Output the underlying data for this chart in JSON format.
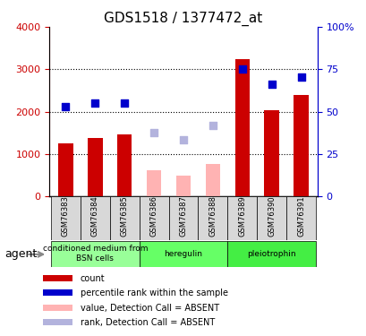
{
  "title": "GDS1518 / 1377472_at",
  "samples": [
    "GSM76383",
    "GSM76384",
    "GSM76385",
    "GSM76386",
    "GSM76387",
    "GSM76388",
    "GSM76389",
    "GSM76390",
    "GSM76391"
  ],
  "count_values": [
    1250,
    1380,
    1460,
    null,
    null,
    null,
    3230,
    2030,
    2400
  ],
  "count_absent": [
    null,
    null,
    null,
    630,
    490,
    760,
    null,
    null,
    null
  ],
  "rank_values": [
    2130,
    2200,
    2210,
    null,
    null,
    null,
    3010,
    2650,
    2820
  ],
  "rank_absent": [
    null,
    null,
    null,
    1500,
    1330,
    1680,
    null,
    null,
    null
  ],
  "ylim": [
    0,
    4000
  ],
  "yticks_left": [
    0,
    1000,
    2000,
    3000,
    4000
  ],
  "ytick_labels_right": [
    "0",
    "25",
    "50",
    "75",
    "100%"
  ],
  "left_axis_color": "#cc0000",
  "right_axis_color": "#0000cc",
  "count_bar_color": "#cc0000",
  "count_absent_bar_color": "#ffb3b3",
  "rank_dot_color": "#0000cc",
  "rank_absent_dot_color": "#b3b3dd",
  "groups": [
    {
      "label": "conditioned medium from\nBSN cells",
      "start": 0,
      "end": 3,
      "color": "#99ff99"
    },
    {
      "label": "heregulin",
      "start": 3,
      "end": 6,
      "color": "#66ff66"
    },
    {
      "label": "pleiotrophin",
      "start": 6,
      "end": 9,
      "color": "#44ee44"
    }
  ],
  "legend_items": [
    {
      "color": "#cc0000",
      "label": "count"
    },
    {
      "color": "#0000cc",
      "label": "percentile rank within the sample"
    },
    {
      "color": "#ffb3b3",
      "label": "value, Detection Call = ABSENT"
    },
    {
      "color": "#b3b3dd",
      "label": "rank, Detection Call = ABSENT"
    }
  ],
  "bar_width": 0.5,
  "dot_size": 38
}
